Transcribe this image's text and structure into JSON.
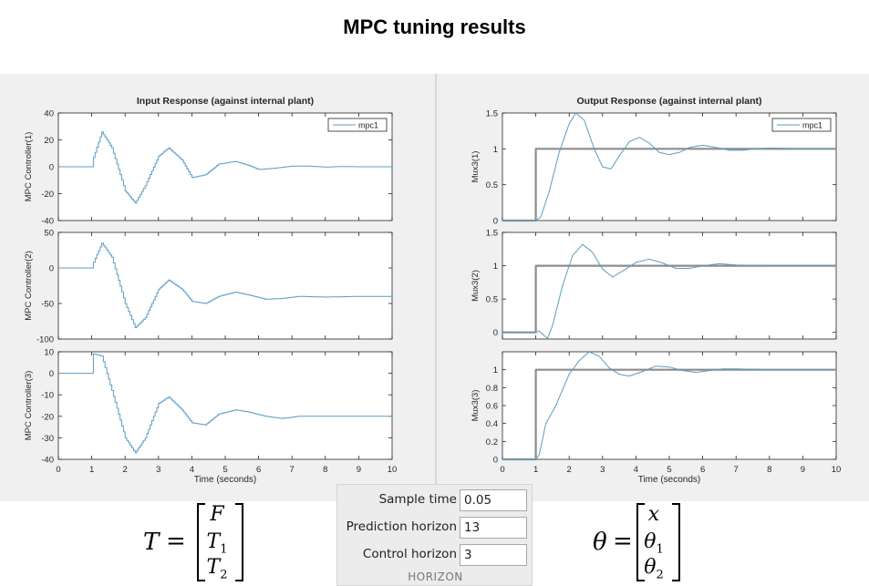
{
  "page": {
    "title": "MPC tuning results"
  },
  "chart_data": [
    {
      "type": "line",
      "panel": "input",
      "row": 1,
      "title": "Input Response (against internal plant)",
      "xlabel": "",
      "ylabel": "MPC Controller(1)",
      "xlim": [
        0,
        10
      ],
      "ylim": [
        -40,
        40
      ],
      "yticks": [
        "-40",
        "-20",
        "0",
        "20",
        "40"
      ],
      "xticks": [],
      "legend": {
        "position": "top-right",
        "entries": [
          "mpc1"
        ]
      },
      "series": [
        {
          "name": "mpc1",
          "color": "#5b9cc4",
          "step": true,
          "x": [
            0,
            1.0,
            1.05,
            1.3,
            1.6,
            2.0,
            2.3,
            2.6,
            3.0,
            3.3,
            3.7,
            4.0,
            4.4,
            4.8,
            5.3,
            5.7,
            6.0,
            6.5,
            7.0,
            7.5,
            8.0,
            8.5,
            9.0,
            9.5,
            10
          ],
          "y": [
            0,
            0,
            7,
            26,
            14,
            -18,
            -27,
            -14,
            8,
            14,
            5,
            -8,
            -6,
            2,
            4,
            1,
            -2,
            -1,
            0.5,
            0.5,
            -0.2,
            0.2,
            0,
            0,
            0
          ]
        }
      ]
    },
    {
      "type": "line",
      "panel": "input",
      "row": 2,
      "xlabel": "",
      "ylabel": "MPC Controller(2)",
      "xlim": [
        0,
        10
      ],
      "ylim": [
        -100,
        50
      ],
      "yticks": [
        "-100",
        "-50",
        "0",
        "50"
      ],
      "xticks": [],
      "series": [
        {
          "name": "mpc1",
          "color": "#5b9cc4",
          "step": true,
          "x": [
            0,
            1.0,
            1.05,
            1.3,
            1.6,
            2.0,
            2.3,
            2.6,
            3.0,
            3.3,
            3.7,
            4.0,
            4.4,
            4.8,
            5.3,
            5.7,
            6.2,
            6.7,
            7.2,
            8.0,
            9.0,
            10
          ],
          "y": [
            0,
            0,
            8,
            35,
            15,
            -50,
            -84,
            -70,
            -30,
            -17,
            -30,
            -47,
            -50,
            -40,
            -34,
            -38,
            -44,
            -43,
            -40,
            -41,
            -40,
            -40
          ]
        }
      ]
    },
    {
      "type": "line",
      "panel": "input",
      "row": 3,
      "xlabel": "Time (seconds)",
      "ylabel": "MPC Controller(3)",
      "xlim": [
        0,
        10
      ],
      "ylim": [
        -40,
        10
      ],
      "yticks": [
        "-40",
        "-30",
        "-20",
        "-10",
        "0",
        "10"
      ],
      "xticks": [
        "0",
        "1",
        "2",
        "3",
        "4",
        "5",
        "6",
        "7",
        "8",
        "9",
        "10"
      ],
      "series": [
        {
          "name": "mpc1",
          "color": "#5b9cc4",
          "step": true,
          "x": [
            0,
            1.0,
            1.05,
            1.3,
            1.6,
            2.0,
            2.3,
            2.6,
            3.0,
            3.3,
            3.7,
            4.0,
            4.4,
            4.8,
            5.3,
            5.7,
            6.2,
            6.7,
            7.2,
            8.0,
            9.0,
            10
          ],
          "y": [
            0,
            0,
            9,
            8,
            -8,
            -30,
            -37,
            -30,
            -14,
            -11,
            -17,
            -23,
            -24,
            -19,
            -17,
            -18,
            -20,
            -21,
            -20,
            -20,
            -20,
            -20
          ]
        }
      ]
    },
    {
      "type": "line",
      "panel": "output",
      "row": 1,
      "title": "Output Response (against internal plant)",
      "xlabel": "",
      "ylabel": "Mux3(1)",
      "xlim": [
        0,
        10
      ],
      "ylim": [
        0,
        1.5
      ],
      "yticks": [
        "0",
        "0.5",
        "1",
        "1.5"
      ],
      "xticks": [],
      "legend": {
        "position": "top-right",
        "entries": [
          "mpc1"
        ]
      },
      "series": [
        {
          "name": "reference",
          "color": "#8c8c8c",
          "width": 2.2,
          "x": [
            0,
            1,
            1,
            10
          ],
          "y": [
            0,
            0,
            1,
            1
          ]
        },
        {
          "name": "mpc1",
          "color": "#5b9cc4",
          "x": [
            0,
            1,
            1.15,
            1.4,
            1.7,
            2.0,
            2.2,
            2.45,
            2.75,
            3.0,
            3.25,
            3.5,
            3.8,
            4.1,
            4.4,
            4.7,
            5.0,
            5.3,
            5.6,
            6.0,
            6.4,
            6.8,
            7.2,
            7.6,
            8.0,
            9.0,
            10
          ],
          "y": [
            0,
            0,
            0.05,
            0.4,
            0.95,
            1.35,
            1.5,
            1.4,
            1.0,
            0.75,
            0.72,
            0.9,
            1.1,
            1.16,
            1.08,
            0.95,
            0.92,
            0.95,
            1.02,
            1.05,
            1.02,
            0.98,
            0.98,
            1.0,
            1.01,
            1.0,
            1.0
          ]
        }
      ]
    },
    {
      "type": "line",
      "panel": "output",
      "row": 2,
      "xlabel": "",
      "ylabel": "Mux3(2)",
      "xlim": [
        0,
        10
      ],
      "ylim": [
        -0.1,
        1.5
      ],
      "yticks": [
        "0",
        "0.5",
        "1",
        "1.5"
      ],
      "xticks": [],
      "series": [
        {
          "name": "reference",
          "color": "#8c8c8c",
          "width": 2.2,
          "x": [
            0,
            1,
            1,
            10
          ],
          "y": [
            0,
            0,
            1,
            1
          ]
        },
        {
          "name": "mpc1",
          "color": "#5b9cc4",
          "x": [
            0,
            1,
            1.1,
            1.25,
            1.35,
            1.5,
            1.8,
            2.1,
            2.4,
            2.7,
            3.0,
            3.3,
            3.6,
            4.0,
            4.4,
            4.8,
            5.2,
            5.6,
            6.0,
            6.5,
            7.0,
            8.0,
            9.0,
            10
          ],
          "y": [
            0,
            0,
            0.02,
            -0.05,
            -0.09,
            0.1,
            0.7,
            1.15,
            1.32,
            1.2,
            0.95,
            0.83,
            0.92,
            1.05,
            1.1,
            1.04,
            0.96,
            0.96,
            1.0,
            1.03,
            1.01,
            1.0,
            1.0,
            1.0
          ]
        }
      ]
    },
    {
      "type": "line",
      "panel": "output",
      "row": 3,
      "xlabel": "Time (seconds)",
      "ylabel": "Mux3(3)",
      "xlim": [
        0,
        10
      ],
      "ylim": [
        0,
        1.2
      ],
      "yticks": [
        "0",
        "0.2",
        "0.4",
        "0.6",
        "0.8",
        "1"
      ],
      "xticks": [
        "0",
        "1",
        "2",
        "3",
        "4",
        "5",
        "6",
        "7",
        "8",
        "9",
        "10"
      ],
      "series": [
        {
          "name": "reference",
          "color": "#8c8c8c",
          "width": 2.2,
          "x": [
            0,
            1,
            1,
            10
          ],
          "y": [
            0,
            0,
            1,
            1
          ]
        },
        {
          "name": "mpc1",
          "color": "#5b9cc4",
          "x": [
            0,
            1,
            1.1,
            1.3,
            1.6,
            2.0,
            2.3,
            2.6,
            2.9,
            3.2,
            3.5,
            3.8,
            4.2,
            4.6,
            5.0,
            5.4,
            5.8,
            6.2,
            6.6,
            7.0,
            8.0,
            9.0,
            10
          ],
          "y": [
            0,
            0,
            0.05,
            0.4,
            0.6,
            0.95,
            1.1,
            1.2,
            1.15,
            1.02,
            0.95,
            0.93,
            0.98,
            1.04,
            1.03,
            0.99,
            0.97,
            0.99,
            1.01,
            1.01,
            1.0,
            1.0,
            1.0
          ]
        }
      ]
    }
  ],
  "parameters": {
    "sample_time": {
      "label": "Sample time",
      "value": "0.05"
    },
    "prediction_horizon": {
      "label": "Prediction horizon",
      "value": "13"
    },
    "control_horizon": {
      "label": "Control horizon",
      "value": "3"
    },
    "section_label": "HORIZON"
  },
  "equations": {
    "left": {
      "lhs": "T",
      "entries": [
        "F",
        "T",
        "T"
      ],
      "subs": [
        "",
        "1",
        "2"
      ]
    },
    "right": {
      "lhs": "θ",
      "entries": [
        "x",
        "θ",
        "θ"
      ],
      "subs": [
        "",
        "1",
        "2"
      ]
    }
  },
  "colors": {
    "line": "#5b9cc4",
    "reference": "#8c8c8c",
    "figure_bg": "#f0f0f0",
    "axes_bg": "#ffffff"
  }
}
